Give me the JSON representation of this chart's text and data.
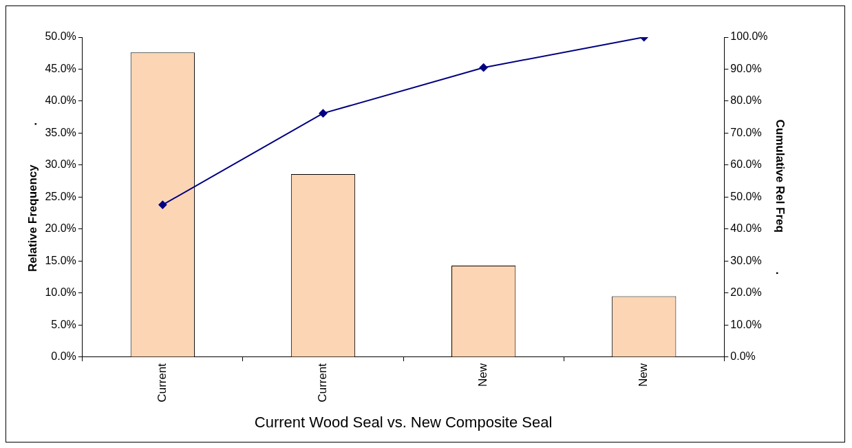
{
  "chart_data": {
    "type": "bar",
    "xlabel": "Current Wood Seal vs. New Composite Seal",
    "ylabel": "Relative Frequency            .",
    "y2label": "Cumulative Rel Freq            .",
    "categories": [
      "Current",
      "Current",
      "New",
      "New"
    ],
    "series": [
      {
        "color": "#fcd5b4",
        "values": [
          47.6,
          28.6,
          14.3,
          9.5
        ]
      },
      {
        "type": "line",
        "axis": "y2",
        "color": "#000080",
        "values": [
          47.6,
          76.2,
          90.5,
          100
        ]
      }
    ],
    "ylim": [
      0,
      50
    ],
    "yticks": [
      {
        "value": 0,
        "label": "0.0%"
      },
      {
        "value": 5,
        "label": "5.0%"
      },
      {
        "value": 10,
        "label": "10.0%"
      },
      {
        "value": 15,
        "label": "15.0%"
      },
      {
        "value": 20,
        "label": "20.0%"
      },
      {
        "value": 25,
        "label": "25.0%"
      },
      {
        "value": 30,
        "label": "30.0%"
      },
      {
        "value": 35,
        "label": "35.0%"
      },
      {
        "value": 40,
        "label": "40.0%"
      },
      {
        "value": 45,
        "label": "45.0%"
      },
      {
        "value": 50,
        "label": "50.0%"
      }
    ],
    "y2lim": [
      0,
      100
    ],
    "y2ticks": [
      {
        "value": 0,
        "label": "0.0%"
      },
      {
        "value": 10,
        "label": "10.0%"
      },
      {
        "value": 20,
        "label": "20.0%"
      },
      {
        "value": 30,
        "label": "30.0%"
      },
      {
        "value": 40,
        "label": "40.0%"
      },
      {
        "value": 50,
        "label": "50.0%"
      },
      {
        "value": 60,
        "label": "60.0%"
      },
      {
        "value": 70,
        "label": "70.0%"
      },
      {
        "value": 80,
        "label": "80.0%"
      },
      {
        "value": 90,
        "label": "90.0%"
      },
      {
        "value": 100,
        "label": "100.0%"
      }
    ],
    "grid": false,
    "legend": false,
    "marker": "diamond",
    "line_style": "solid"
  }
}
